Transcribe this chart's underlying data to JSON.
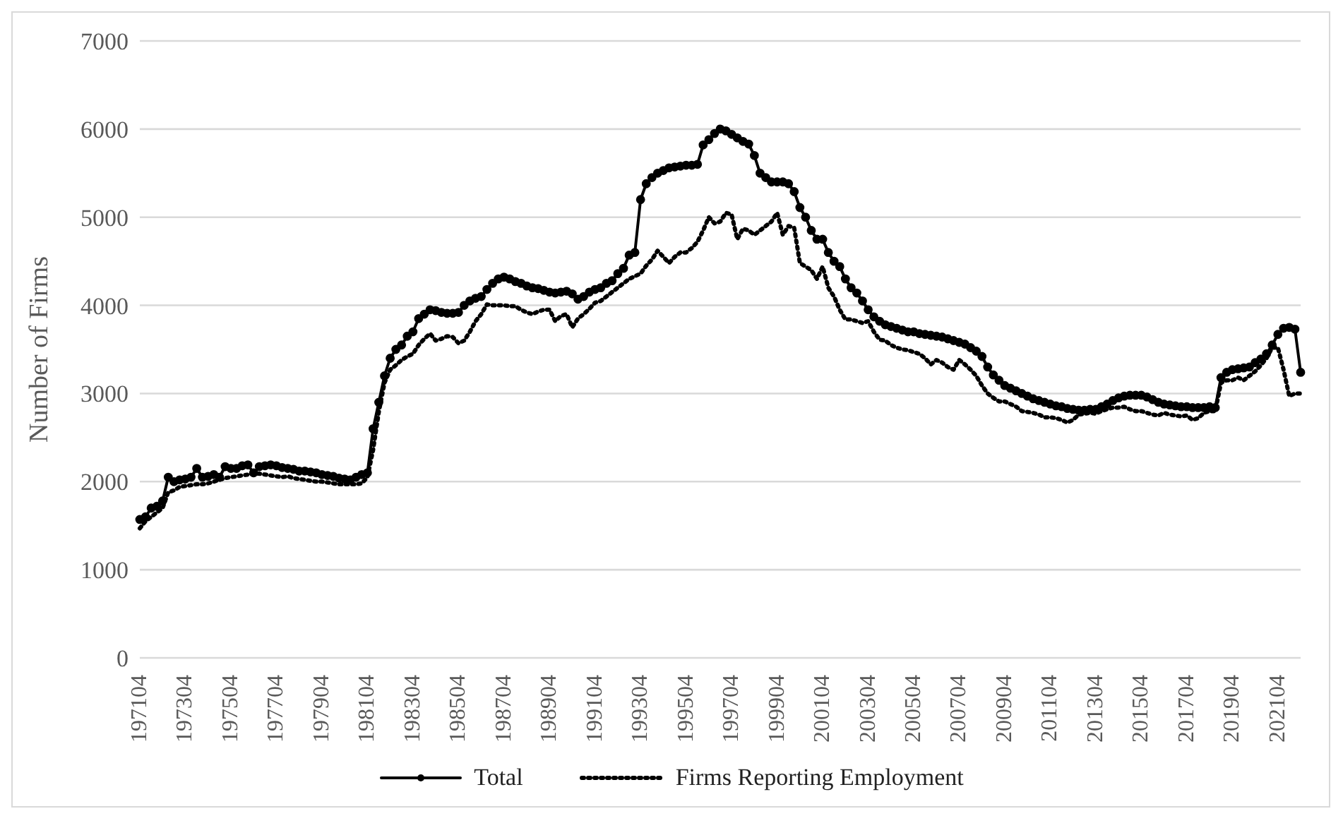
{
  "chart_data": {
    "type": "line",
    "ylabel": "Number of Firms",
    "ylim": [
      0,
      7000
    ],
    "yticks": [
      0,
      1000,
      2000,
      3000,
      4000,
      5000,
      6000,
      7000
    ],
    "grid": "y",
    "legend": "bottom",
    "categories": [
      "197104",
      null,
      null,
      null,
      null,
      null,
      null,
      null,
      "197304",
      null,
      null,
      null,
      null,
      null,
      null,
      null,
      "197504",
      null,
      null,
      null,
      null,
      null,
      null,
      null,
      "197704",
      null,
      null,
      null,
      null,
      null,
      null,
      null,
      "197904",
      null,
      null,
      null,
      null,
      null,
      null,
      null,
      "198104",
      null,
      null,
      null,
      null,
      null,
      null,
      null,
      "198304",
      null,
      null,
      null,
      null,
      null,
      null,
      null,
      "198504",
      null,
      null,
      null,
      null,
      null,
      null,
      null,
      "198704",
      null,
      null,
      null,
      null,
      null,
      null,
      null,
      "198904",
      null,
      null,
      null,
      null,
      null,
      null,
      null,
      "199104",
      null,
      null,
      null,
      null,
      null,
      null,
      null,
      "199304",
      null,
      null,
      null,
      null,
      null,
      null,
      null,
      "199504",
      null,
      null,
      null,
      null,
      null,
      null,
      null,
      "199704",
      null,
      null,
      null,
      null,
      null,
      null,
      null,
      "199904",
      null,
      null,
      null,
      null,
      null,
      null,
      null,
      "200104",
      null,
      null,
      null,
      null,
      null,
      null,
      null,
      "200304",
      null,
      null,
      null,
      null,
      null,
      null,
      null,
      "200504",
      null,
      null,
      null,
      null,
      null,
      null,
      null,
      "200704",
      null,
      null,
      null,
      null,
      null,
      null,
      null,
      "200904",
      null,
      null,
      null,
      null,
      null,
      null,
      null,
      "201104",
      null,
      null,
      null,
      null,
      null,
      null,
      null,
      "201304",
      null,
      null,
      null,
      null,
      null,
      null,
      null,
      "201504",
      null,
      null,
      null,
      null,
      null,
      null,
      null,
      "201704",
      null,
      null,
      null,
      null,
      null,
      null,
      null,
      "201904",
      null,
      null,
      null,
      null,
      null,
      null,
      null,
      "202104",
      null,
      null,
      null,
      null
    ],
    "series": [
      {
        "name": "Total",
        "color": "#000000",
        "marker": "circle",
        "line_style": "solid",
        "values": [
          1570,
          1600,
          1700,
          1720,
          1780,
          2050,
          2000,
          2020,
          2030,
          2050,
          2150,
          2050,
          2060,
          2080,
          2050,
          2170,
          2150,
          2150,
          2180,
          2190,
          2100,
          2170,
          2180,
          2190,
          2180,
          2160,
          2150,
          2140,
          2120,
          2120,
          2110,
          2100,
          2080,
          2070,
          2060,
          2040,
          2030,
          2020,
          2050,
          2080,
          2100,
          2600,
          2900,
          3200,
          3400,
          3500,
          3550,
          3650,
          3700,
          3850,
          3900,
          3950,
          3940,
          3920,
          3910,
          3910,
          3920,
          4000,
          4050,
          4080,
          4100,
          4180,
          4250,
          4300,
          4320,
          4300,
          4270,
          4250,
          4220,
          4200,
          4190,
          4170,
          4150,
          4140,
          4150,
          4160,
          4130,
          4070,
          4100,
          4150,
          4180,
          4200,
          4250,
          4280,
          4360,
          4420,
          4570,
          4600,
          5200,
          5380,
          5450,
          5500,
          5530,
          5560,
          5570,
          5580,
          5590,
          5590,
          5600,
          5820,
          5880,
          5950,
          6000,
          5980,
          5940,
          5900,
          5860,
          5830,
          5700,
          5500,
          5450,
          5400,
          5400,
          5400,
          5380,
          5290,
          5110,
          5000,
          4850,
          4750,
          4750,
          4600,
          4500,
          4440,
          4300,
          4200,
          4140,
          4050,
          3950,
          3870,
          3820,
          3780,
          3760,
          3740,
          3720,
          3700,
          3700,
          3680,
          3670,
          3660,
          3650,
          3640,
          3620,
          3600,
          3580,
          3560,
          3520,
          3480,
          3420,
          3300,
          3210,
          3150,
          3090,
          3060,
          3030,
          3000,
          2970,
          2940,
          2920,
          2900,
          2880,
          2860,
          2850,
          2830,
          2820,
          2810,
          2810,
          2820,
          2820,
          2850,
          2880,
          2920,
          2950,
          2970,
          2980,
          2980,
          2980,
          2960,
          2930,
          2900,
          2880,
          2870,
          2860,
          2850,
          2850,
          2840,
          2840,
          2840,
          2850,
          2840,
          3180,
          3240,
          3270,
          3280,
          3290,
          3300,
          3350,
          3390,
          3450,
          3550,
          3670,
          3740,
          3750,
          3730,
          3240
        ]
      },
      {
        "name": "Firms Reporting Employment",
        "color": "#000000",
        "marker": "none",
        "line_style": "dotted",
        "values": [
          1470,
          1550,
          1600,
          1650,
          1700,
          1880,
          1900,
          1940,
          1950,
          1960,
          1970,
          1970,
          1980,
          2000,
          2020,
          2040,
          2050,
          2060,
          2070,
          2080,
          2090,
          2090,
          2080,
          2070,
          2060,
          2050,
          2060,
          2040,
          2030,
          2020,
          2010,
          2000,
          2000,
          1990,
          1980,
          1970,
          1970,
          1970,
          1970,
          1980,
          2050,
          2360,
          2790,
          3120,
          3270,
          3320,
          3380,
          3420,
          3450,
          3550,
          3620,
          3680,
          3600,
          3620,
          3650,
          3640,
          3570,
          3600,
          3700,
          3820,
          3900,
          4010,
          4000,
          4000,
          4000,
          3990,
          3990,
          3950,
          3920,
          3900,
          3930,
          3950,
          3950,
          3820,
          3880,
          3900,
          3750,
          3850,
          3900,
          3960,
          4030,
          4050,
          4100,
          4150,
          4200,
          4250,
          4300,
          4330,
          4360,
          4450,
          4520,
          4620,
          4550,
          4480,
          4550,
          4600,
          4600,
          4650,
          4720,
          4850,
          5000,
          4930,
          4950,
          5050,
          5030,
          4750,
          4870,
          4850,
          4800,
          4850,
          4900,
          4950,
          5050,
          4800,
          4900,
          4880,
          4480,
          4440,
          4400,
          4300,
          4440,
          4200,
          4100,
          3950,
          3840,
          3840,
          3820,
          3800,
          3820,
          3700,
          3610,
          3600,
          3550,
          3520,
          3500,
          3490,
          3470,
          3450,
          3400,
          3330,
          3380,
          3350,
          3300,
          3270,
          3380,
          3330,
          3270,
          3200,
          3090,
          3000,
          2950,
          2910,
          2910,
          2880,
          2850,
          2800,
          2790,
          2780,
          2760,
          2730,
          2730,
          2720,
          2700,
          2670,
          2700,
          2760,
          2770,
          2780,
          2770,
          2800,
          2820,
          2840,
          2840,
          2850,
          2820,
          2800,
          2800,
          2780,
          2760,
          2750,
          2780,
          2760,
          2750,
          2740,
          2750,
          2700,
          2720,
          2780,
          2800,
          2800,
          3120,
          3150,
          3150,
          3180,
          3150,
          3200,
          3250,
          3320,
          3400,
          3520,
          3520,
          3270,
          2970,
          3000,
          3000
        ]
      }
    ]
  }
}
